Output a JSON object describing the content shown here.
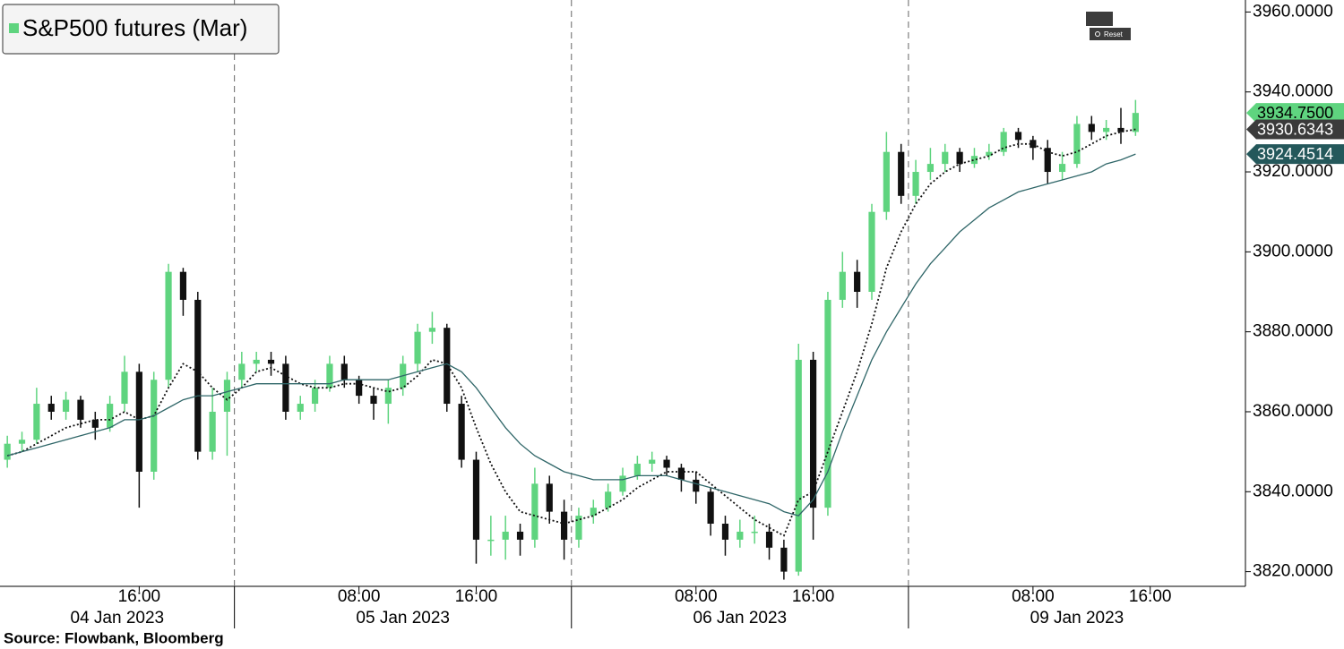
{
  "chart_data": {
    "type": "candlestick",
    "source": "Source: Flowbank, Bloomberg",
    "categories": [
      null,
      null,
      null,
      null,
      null,
      null,
      null,
      null,
      null,
      "16:00",
      null,
      null,
      null,
      null,
      null,
      null,
      null,
      null,
      null,
      null,
      null,
      null,
      null,
      null,
      "08:00",
      null,
      null,
      null,
      null,
      null,
      null,
      null,
      "16:00",
      null,
      null,
      null,
      null,
      null,
      null,
      null,
      null,
      null,
      null,
      null,
      null,
      null,
      null,
      "08:00",
      null,
      null,
      null,
      null,
      null,
      null,
      null,
      "16:00",
      null,
      null,
      null,
      null,
      null,
      null,
      null,
      null,
      null,
      null,
      null,
      null,
      null,
      null,
      "08:00",
      null,
      null,
      null,
      null,
      null,
      null,
      null,
      "16:00",
      null,
      null,
      null,
      null,
      null,
      null
    ],
    "day_labels": [
      {
        "label": "04 Jan 2023",
        "first": 0,
        "last": 15
      },
      {
        "label": "05 Jan 2023",
        "first": 16,
        "last": 38
      },
      {
        "label": "06 Jan 2023",
        "first": 39,
        "last": 61
      },
      {
        "label": "09 Jan 2023",
        "first": 62,
        "last": 84
      }
    ],
    "ylim": [
      3817,
      3963
    ],
    "yticks": [
      {
        "value": 3820,
        "label": "3820.0000"
      },
      {
        "value": 3840,
        "label": "3840.0000"
      },
      {
        "value": 3860,
        "label": "3860.0000"
      },
      {
        "value": 3880,
        "label": "3880.0000"
      },
      {
        "value": 3900,
        "label": "3900.0000"
      },
      {
        "value": 3920,
        "label": "3920.0000"
      },
      {
        "value": 3940,
        "label": "3940.0000"
      },
      {
        "value": 3960,
        "label": "3960.0000"
      }
    ],
    "series": [
      {
        "name": "S&P500 futures (Mar)",
        "color": "#5fd47f",
        "down_color": "#111111",
        "tag_color": "#5fd47f",
        "tag_text": "#000000",
        "last_label": "3934.7500",
        "open": [
          3848,
          3852,
          3853,
          3862,
          3860,
          3863,
          3858,
          3856,
          3862,
          3870,
          3845,
          3868,
          3895,
          3888,
          3850,
          3860,
          3868,
          3872,
          3873,
          3872,
          3860,
          3862,
          3866,
          3872,
          3868,
          3864,
          3862,
          3866,
          3872,
          3880,
          3881,
          3862,
          3848,
          3828,
          3828,
          3830,
          3828,
          3842,
          3835,
          3828,
          3834,
          3836,
          3840,
          3844,
          3847,
          3848,
          3846,
          3843,
          3840,
          3832,
          3828,
          3830,
          3830,
          3826,
          3820,
          3873,
          3836,
          3888,
          3895,
          3890,
          3910,
          3925,
          3914,
          3920,
          3922,
          3925,
          3922,
          3924,
          3925,
          3930,
          3928,
          3926,
          3920,
          3922,
          3932,
          3930,
          3931,
          3930,
          null,
          null,
          null,
          null,
          null,
          null,
          null
        ],
        "high": [
          3854,
          3855,
          3866,
          3864,
          3865,
          3864,
          3860,
          3864,
          3874,
          3872,
          3870,
          3897,
          3896,
          3890,
          3866,
          3870,
          3875,
          3875,
          3875,
          3874,
          3864,
          3868,
          3874,
          3874,
          3869,
          3866,
          3868,
          3874,
          3882,
          3885,
          3882,
          3864,
          3850,
          3834,
          3834,
          3832,
          3846,
          3844,
          3838,
          3836,
          3838,
          3842,
          3846,
          3849,
          3850,
          3849,
          3847,
          3845,
          3841,
          3834,
          3833,
          3834,
          3832,
          3828,
          3877,
          3875,
          3890,
          3900,
          3898,
          3912,
          3930,
          3927,
          3923,
          3926,
          3927,
          3926,
          3926,
          3927,
          3931,
          3931,
          3929,
          3928,
          3925,
          3934,
          3934,
          3933,
          3936,
          3938,
          null,
          null,
          null,
          null,
          null,
          null,
          null
        ],
        "low": [
          3846,
          3850,
          3852,
          3858,
          3858,
          3856,
          3853,
          3855,
          3860,
          3836,
          3843,
          3866,
          3884,
          3848,
          3848,
          3849,
          3866,
          3870,
          3869,
          3858,
          3858,
          3860,
          3865,
          3866,
          3862,
          3858,
          3857,
          3864,
          3870,
          3877,
          3860,
          3846,
          3822,
          3824,
          3823,
          3824,
          3826,
          3832,
          3823,
          3826,
          3832,
          3835,
          3839,
          3843,
          3845,
          3844,
          3840,
          3837,
          3829,
          3824,
          3826,
          3827,
          3823,
          3818,
          3819,
          3828,
          3834,
          3886,
          3886,
          3888,
          3908,
          3912,
          3912,
          3918,
          3920,
          3920,
          3921,
          3923,
          3924,
          3926,
          3923,
          3917,
          3918,
          3921,
          3928,
          3928,
          3927,
          3929,
          null,
          null,
          null,
          null,
          null,
          null,
          null
        ],
        "close": [
          3852,
          3853,
          3862,
          3860,
          3863,
          3858,
          3856,
          3862,
          3870,
          3845,
          3868,
          3895,
          3888,
          3850,
          3860,
          3868,
          3872,
          3873,
          3872,
          3860,
          3862,
          3866,
          3872,
          3868,
          3864,
          3862,
          3866,
          3872,
          3880,
          3881,
          3862,
          3848,
          3828,
          3828,
          3830,
          3828,
          3842,
          3835,
          3828,
          3834,
          3836,
          3840,
          3844,
          3847,
          3848,
          3846,
          3843,
          3840,
          3832,
          3828,
          3830,
          3830,
          3826,
          3820,
          3873,
          3836,
          3888,
          3895,
          3890,
          3910,
          3925,
          3914,
          3920,
          3922,
          3925,
          3922,
          3924,
          3925,
          3930,
          3928,
          3926,
          3920,
          3922,
          3932,
          3930,
          3931,
          3930,
          3934.75,
          null,
          null,
          null,
          null,
          null,
          null,
          null
        ]
      },
      {
        "color": "#111111",
        "dash": true,
        "tag_color": "#3b3b3b",
        "tag_text": "#ffffff",
        "last_label": "3930.6343",
        "values": [
          3849,
          3850,
          3852,
          3854,
          3856,
          3857,
          3858,
          3858,
          3860,
          3858,
          3859,
          3866,
          3872,
          3870,
          3866,
          3863,
          3866,
          3870,
          3871,
          3869,
          3867,
          3866,
          3866,
          3867,
          3867,
          3866,
          3865,
          3866,
          3869,
          3873,
          3872,
          3866,
          3856,
          3847,
          3840,
          3835,
          3834,
          3833,
          3832,
          3833,
          3834,
          3836,
          3838,
          3841,
          3843,
          3845,
          3845,
          3845,
          3842,
          3839,
          3836,
          3833,
          3831,
          3829,
          3838,
          3840,
          3850,
          3860,
          3870,
          3882,
          3896,
          3905,
          3912,
          3917,
          3920,
          3922,
          3923,
          3924,
          3926,
          3927,
          3927,
          3925,
          3924,
          3925,
          3927,
          3929,
          3930,
          3930.6343,
          null,
          null,
          null,
          null,
          null,
          null,
          null
        ]
      },
      {
        "color": "#2f6668",
        "dash": false,
        "tag_color": "#24585b",
        "tag_text": "#ffffff",
        "last_label": "3924.4514",
        "values": [
          3849,
          3850,
          3851,
          3852,
          3853,
          3854,
          3855,
          3856,
          3858,
          3858,
          3859,
          3861,
          3863,
          3864,
          3864,
          3865,
          3866,
          3867,
          3867,
          3867,
          3867,
          3867,
          3867,
          3868,
          3868,
          3868,
          3868,
          3869,
          3870,
          3871,
          3872,
          3870,
          3866,
          3861,
          3856,
          3852,
          3849,
          3847,
          3845,
          3844,
          3843,
          3843,
          3843,
          3844,
          3844,
          3844,
          3843,
          3842,
          3841,
          3840,
          3839,
          3838,
          3837,
          3835,
          3834,
          3838,
          3845,
          3855,
          3864,
          3873,
          3880,
          3886,
          3892,
          3897,
          3901,
          3905,
          3908,
          3911,
          3913,
          3915,
          3916,
          3917,
          3918,
          3919,
          3920,
          3922,
          3923,
          3924.4514,
          null,
          null,
          null,
          null,
          null,
          null,
          null
        ]
      }
    ]
  },
  "toolbar": {
    "reset": "Reset"
  }
}
